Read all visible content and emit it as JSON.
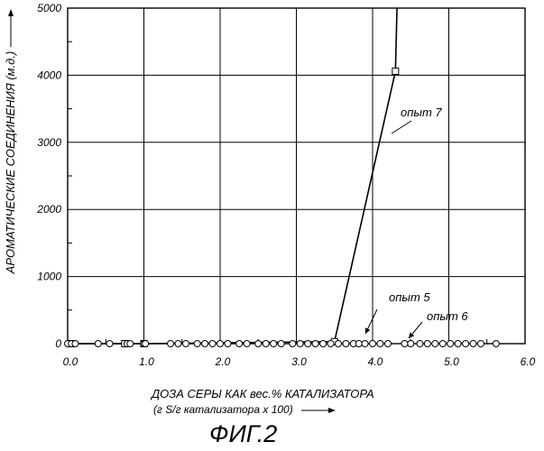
{
  "chart_data": {
    "type": "scatter",
    "figure_label": "ФИГ.2",
    "xlabel": "ДОЗА СЕРЫ КАК вес.% КАТАЛИЗАТОРА",
    "xlabel_line2": "(г S/г катализатора х 100)",
    "ylabel": "АРОМАТИЧЕСКИЕ СОЕДИНЕНИЯ (м.д.)",
    "xlim": [
      0,
      6.0
    ],
    "ylim": [
      0,
      5000
    ],
    "x_ticks": [
      "0.0",
      "1.0",
      "2.0",
      "3.0",
      "4.0",
      "5.0",
      "6.0"
    ],
    "y_ticks": [
      "0",
      "1000",
      "2000",
      "3000",
      "4000",
      "5000"
    ],
    "grid": true,
    "series": [
      {
        "name": "опыт 7",
        "marker": "square",
        "line": true,
        "x": [
          0.05,
          0.75,
          1.0,
          3.5,
          4.3,
          4.32
        ],
        "y": [
          0,
          0,
          0,
          30,
          4060,
          5000
        ]
      },
      {
        "name": "опыт 5",
        "marker": "circle",
        "line": false,
        "x": [
          0.0,
          0.05,
          0.1,
          0.4,
          0.55,
          0.78,
          0.82,
          1.0,
          1.02,
          1.35,
          1.45,
          1.55,
          1.7,
          1.8,
          1.9,
          2.0,
          2.1,
          2.25,
          2.35,
          2.5,
          2.6,
          2.7,
          2.8,
          2.95,
          3.05,
          3.15,
          3.25,
          3.35,
          3.45,
          3.55,
          3.65,
          3.75,
          3.82,
          3.9
        ],
        "y": [
          0,
          0,
          0,
          0,
          0,
          0,
          0,
          0,
          0,
          0,
          0,
          0,
          0,
          0,
          0,
          0,
          0,
          0,
          0,
          0,
          0,
          0,
          0,
          0,
          0,
          0,
          0,
          0,
          0,
          0,
          0,
          0,
          0,
          0
        ]
      },
      {
        "name": "опыт 6",
        "marker": "circle",
        "line": false,
        "x": [
          4.0,
          4.1,
          4.2,
          4.42,
          4.5,
          4.62,
          4.72,
          4.82,
          4.92,
          5.02,
          5.12,
          5.22,
          5.32,
          5.42,
          5.62
        ],
        "y": [
          0,
          0,
          0,
          0,
          0,
          0,
          0,
          0,
          0,
          0,
          0,
          0,
          0,
          0,
          0
        ]
      }
    ],
    "annotations": [
      {
        "text": "опыт 7",
        "series": "опыт 7"
      },
      {
        "text": "опыт 5",
        "series": "опыт 5"
      },
      {
        "text": "опыт 6",
        "series": "опыт 6"
      }
    ],
    "colors": {
      "ink": "#000000",
      "grid": "#000000",
      "background": "#ffffff"
    }
  }
}
